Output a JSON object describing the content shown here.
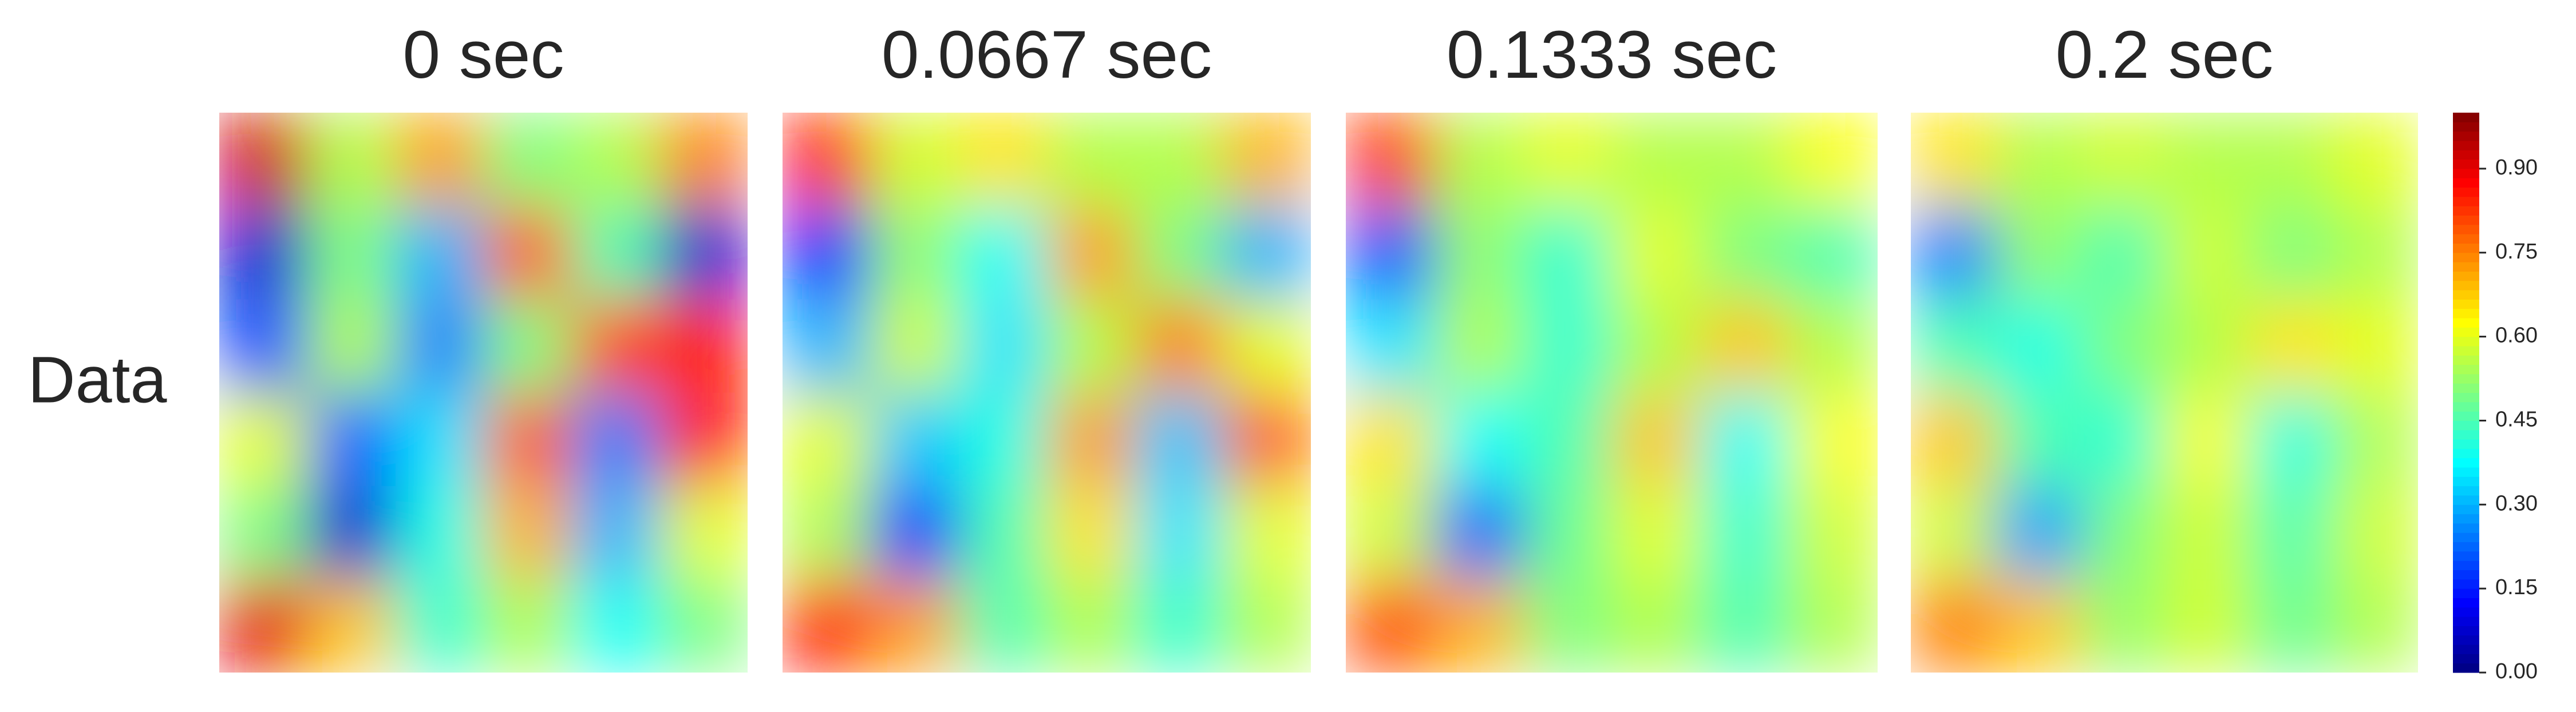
{
  "chart_data": {
    "type": "heatmap",
    "row_label": "Data",
    "colormap": "jet",
    "panels": [
      {
        "title": "0 sec",
        "values": [
          [
            0.92,
            0.55,
            0.72,
            0.5,
            0.55,
            0.75
          ],
          [
            0.08,
            0.5,
            0.3,
            0.78,
            0.45,
            0.08
          ],
          [
            0.2,
            0.55,
            0.25,
            0.5,
            0.8,
            0.85
          ],
          [
            0.6,
            0.22,
            0.35,
            0.78,
            0.25,
            0.85
          ],
          [
            0.5,
            0.08,
            0.4,
            0.7,
            0.3,
            0.6
          ],
          [
            0.9,
            0.68,
            0.42,
            0.55,
            0.38,
            0.5
          ]
        ]
      },
      {
        "title": "0.0667 sec",
        "values": [
          [
            0.85,
            0.58,
            0.65,
            0.55,
            0.55,
            0.7
          ],
          [
            0.15,
            0.52,
            0.38,
            0.72,
            0.5,
            0.3
          ],
          [
            0.3,
            0.58,
            0.35,
            0.55,
            0.75,
            0.6
          ],
          [
            0.6,
            0.32,
            0.4,
            0.72,
            0.32,
            0.78
          ],
          [
            0.55,
            0.15,
            0.45,
            0.65,
            0.35,
            0.6
          ],
          [
            0.85,
            0.72,
            0.45,
            0.55,
            0.42,
            0.55
          ]
        ]
      },
      {
        "title": "0.1333 sec",
        "values": [
          [
            0.82,
            0.55,
            0.6,
            0.55,
            0.55,
            0.62
          ],
          [
            0.2,
            0.52,
            0.42,
            0.6,
            0.5,
            0.45
          ],
          [
            0.35,
            0.55,
            0.42,
            0.55,
            0.68,
            0.55
          ],
          [
            0.65,
            0.38,
            0.45,
            0.68,
            0.38,
            0.62
          ],
          [
            0.58,
            0.22,
            0.48,
            0.6,
            0.42,
            0.58
          ],
          [
            0.8,
            0.7,
            0.5,
            0.55,
            0.45,
            0.55
          ]
        ]
      },
      {
        "title": "0.2 sec",
        "values": [
          [
            0.65,
            0.55,
            0.58,
            0.55,
            0.55,
            0.6
          ],
          [
            0.25,
            0.52,
            0.45,
            0.58,
            0.5,
            0.55
          ],
          [
            0.45,
            0.4,
            0.5,
            0.55,
            0.65,
            0.6
          ],
          [
            0.68,
            0.45,
            0.42,
            0.62,
            0.4,
            0.55
          ],
          [
            0.58,
            0.28,
            0.5,
            0.58,
            0.45,
            0.58
          ],
          [
            0.75,
            0.68,
            0.52,
            0.58,
            0.48,
            0.55
          ]
        ]
      }
    ],
    "colorbar": {
      "ylim": [
        0,
        1.0
      ],
      "yticks": [
        {
          "value": 0,
          "label": "0.00"
        },
        {
          "value": 0.15,
          "label": "0.15"
        },
        {
          "value": 0.3,
          "label": "0.30"
        },
        {
          "value": 0.45,
          "label": "0.45"
        },
        {
          "value": 0.6,
          "label": "0.60"
        },
        {
          "value": 0.75,
          "label": "0.75"
        },
        {
          "value": 0.9,
          "label": "0.90"
        }
      ]
    }
  }
}
